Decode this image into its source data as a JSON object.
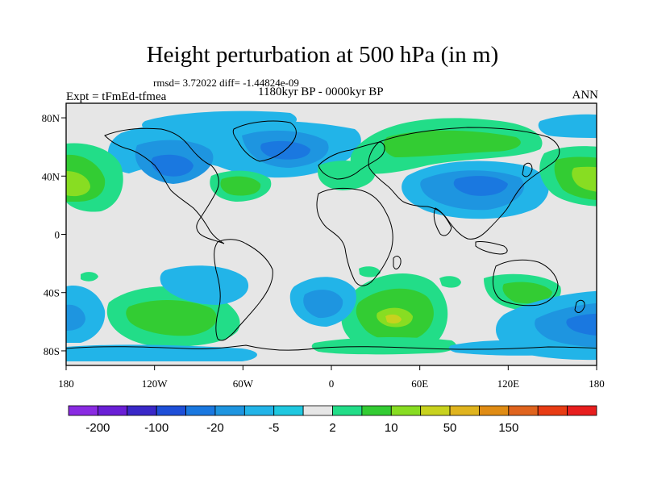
{
  "title": "Height perturbation at 500 hPa (in m)",
  "stats": "rmsd= 3.72022 diff= -1.44824e-09",
  "period": "1180kyr BP - 0000kyr BP",
  "experiment": "Expt = tFmEd-tfmea",
  "season": "ANN",
  "lat_ticks": [
    {
      "value": 80,
      "label": "80N"
    },
    {
      "value": 40,
      "label": "40N"
    },
    {
      "value": 0,
      "label": "0"
    },
    {
      "value": -40,
      "label": "40S"
    },
    {
      "value": -80,
      "label": "80S"
    }
  ],
  "lon_ticks": [
    {
      "value": -180,
      "label": "180"
    },
    {
      "value": -120,
      "label": "120W"
    },
    {
      "value": -60,
      "label": "60W"
    },
    {
      "value": 0,
      "label": "0"
    },
    {
      "value": 60,
      "label": "60E"
    },
    {
      "value": 120,
      "label": "120E"
    },
    {
      "value": 180,
      "label": "180"
    }
  ],
  "colorbar": {
    "colors": [
      "#8a2be2",
      "#6a1fd6",
      "#3a28c8",
      "#1e4fd8",
      "#1a78e0",
      "#1e95e0",
      "#22b4e8",
      "#1fc8e0",
      "#e6e6e6",
      "#22dd88",
      "#33cc33",
      "#88dd22",
      "#c8d21e",
      "#e0b41e",
      "#e08c14",
      "#e0641e",
      "#e83c14",
      "#e81e1e"
    ],
    "labels": [
      {
        "after_index": 0,
        "text": "-200"
      },
      {
        "after_index": 2,
        "text": "-100"
      },
      {
        "after_index": 4,
        "text": "-20"
      },
      {
        "after_index": 6,
        "text": "-5"
      },
      {
        "after_index": 8,
        "text": "2"
      },
      {
        "after_index": 10,
        "text": "10"
      },
      {
        "after_index": 12,
        "text": "50"
      },
      {
        "after_index": 14,
        "text": "150"
      }
    ]
  },
  "map": {
    "background_color": "#e6e6e6",
    "lon_range": [
      -180,
      180
    ],
    "lat_range": [
      -90,
      90
    ]
  }
}
